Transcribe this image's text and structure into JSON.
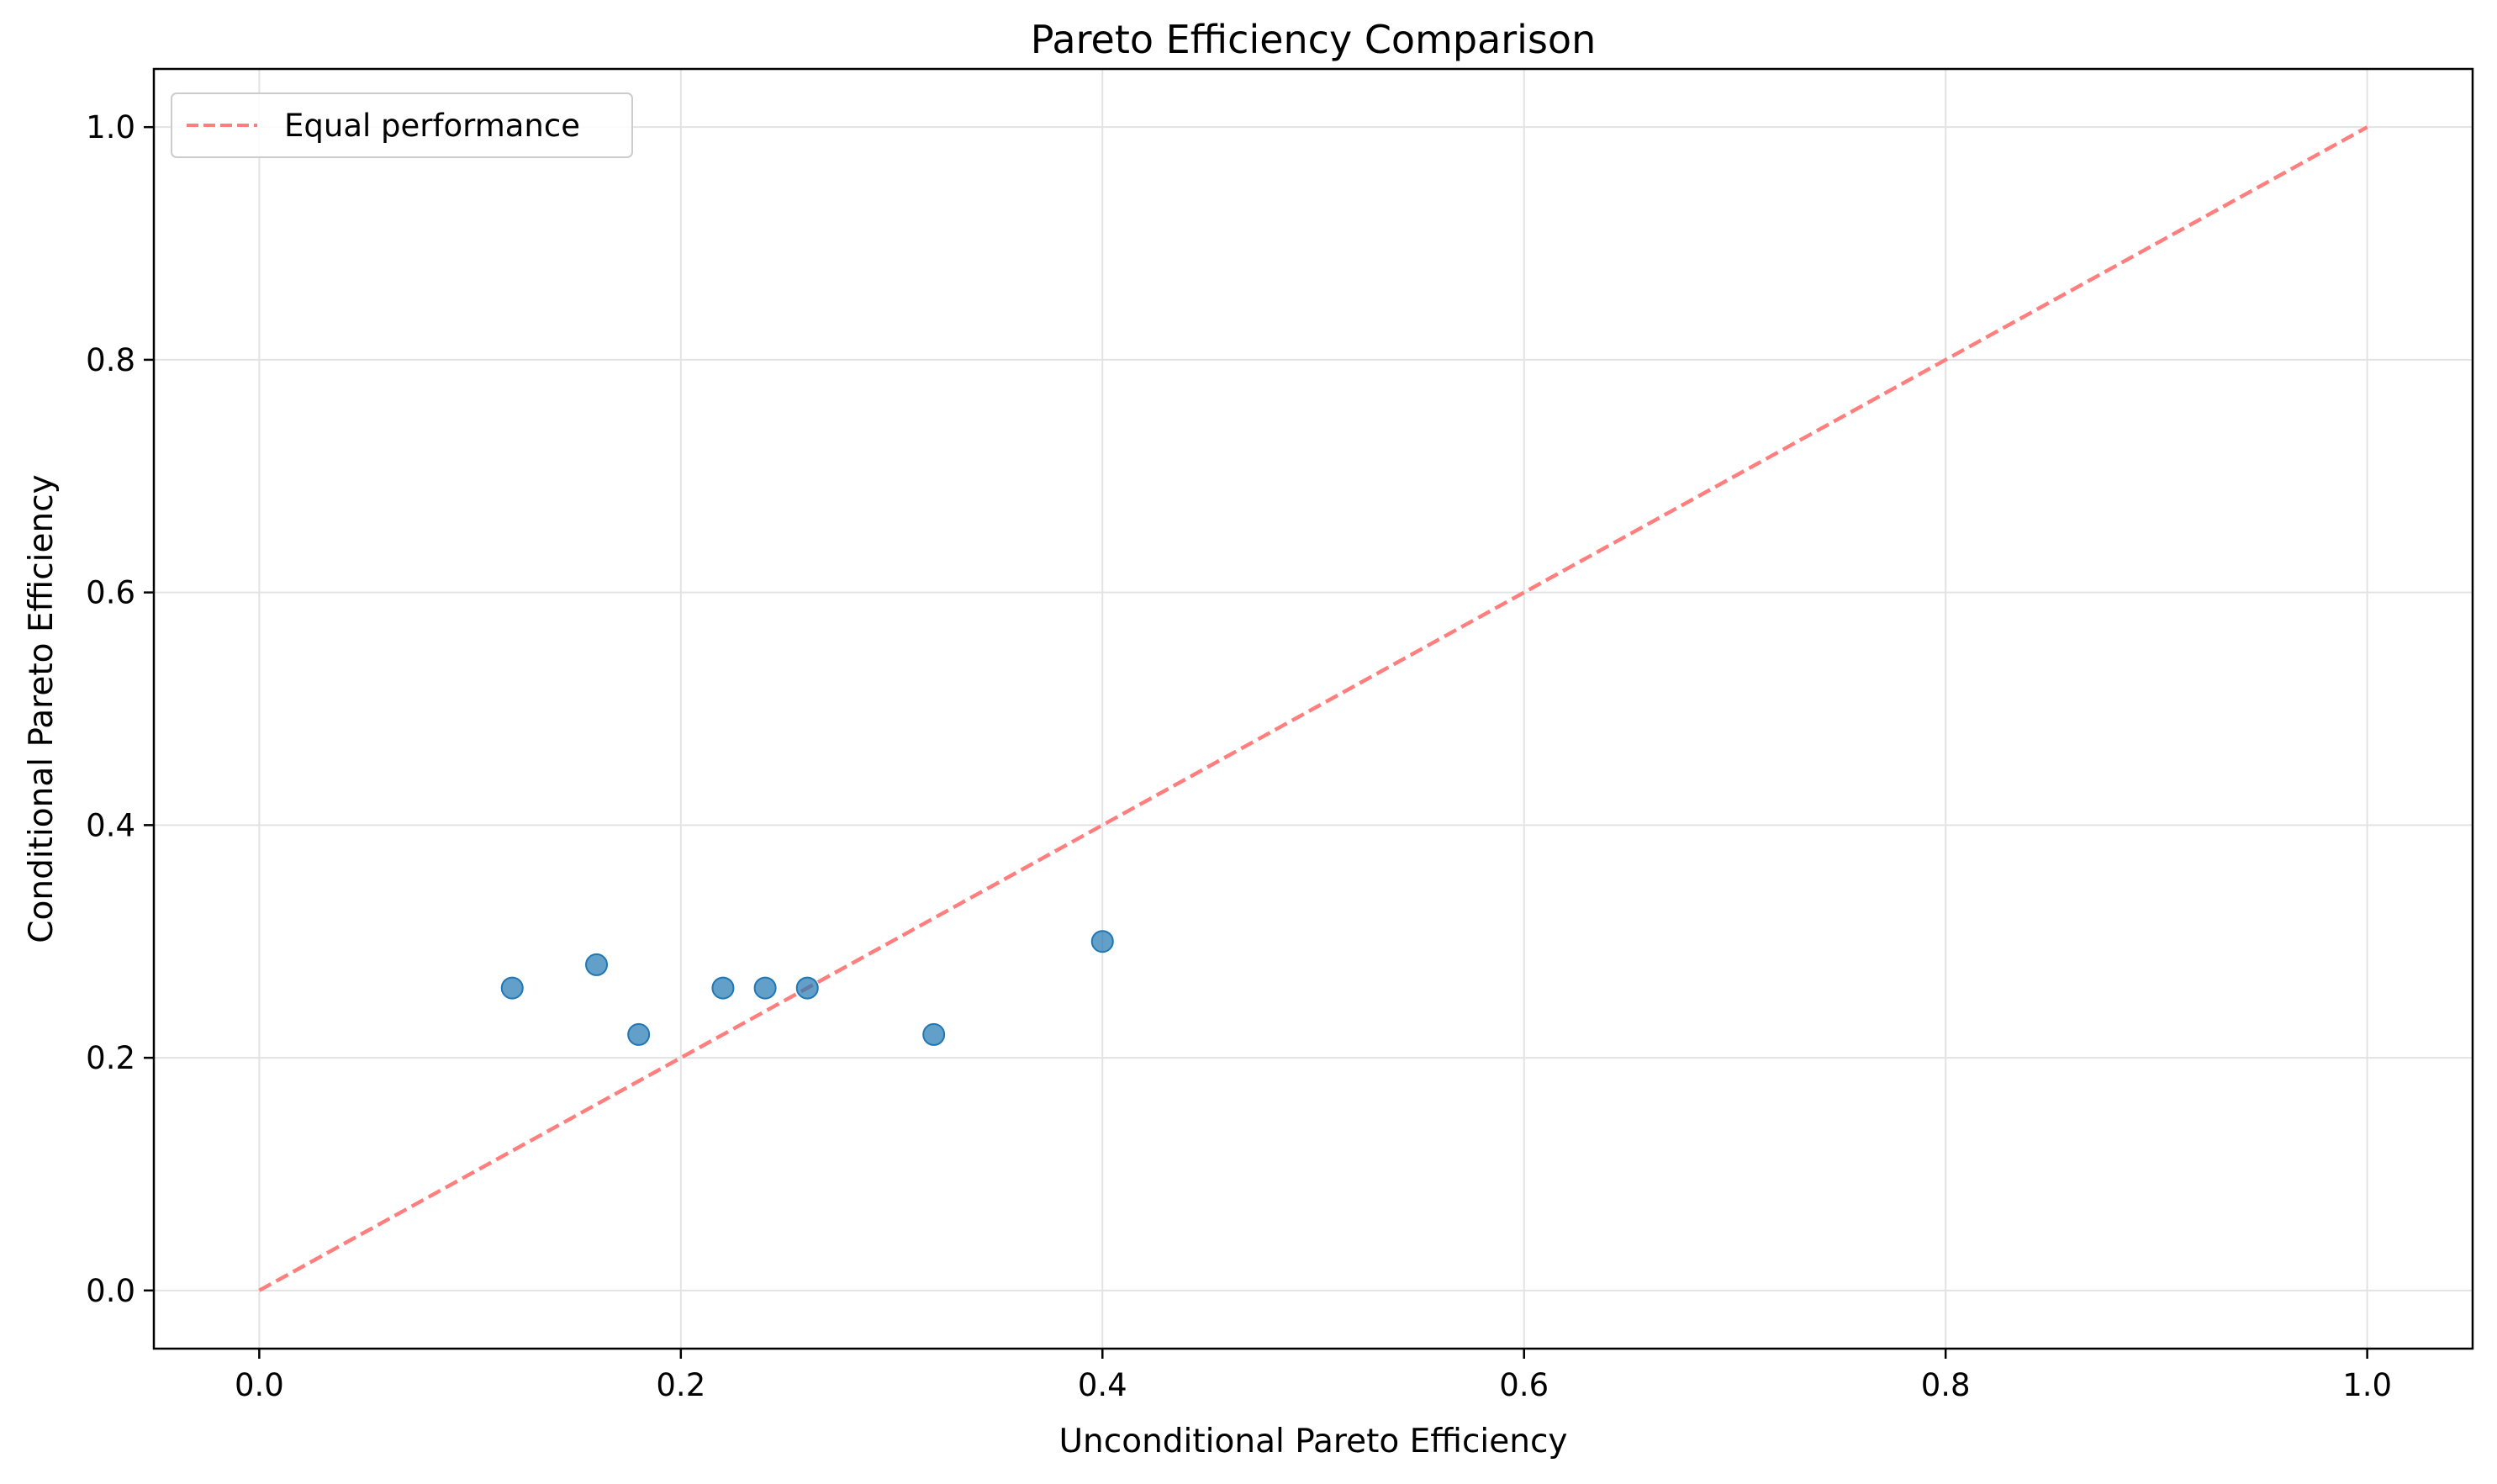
{
  "chart_data": {
    "type": "scatter",
    "title": "Pareto Efficiency Comparison",
    "xlabel": "Unconditional Pareto Efficiency",
    "ylabel": "Conditional Pareto Efficiency",
    "xlim": [
      -0.05,
      1.05
    ],
    "ylim": [
      -0.05,
      1.05
    ],
    "xticks": [
      "0.0",
      "0.2",
      "0.4",
      "0.6",
      "0.8",
      "1.0"
    ],
    "yticks": [
      "0.0",
      "0.2",
      "0.4",
      "0.6",
      "0.8",
      "1.0"
    ],
    "grid": true,
    "legend_position": "top-left",
    "series": [
      {
        "type": "scatter",
        "color": "#1f77b4",
        "points": [
          {
            "x": 0.12,
            "y": 0.26
          },
          {
            "x": 0.16,
            "y": 0.28
          },
          {
            "x": 0.18,
            "y": 0.22
          },
          {
            "x": 0.22,
            "y": 0.26
          },
          {
            "x": 0.24,
            "y": 0.26
          },
          {
            "x": 0.26,
            "y": 0.26
          },
          {
            "x": 0.32,
            "y": 0.22
          },
          {
            "x": 0.4,
            "y": 0.3
          }
        ]
      },
      {
        "type": "line",
        "name": "Equal performance",
        "style": "dashed",
        "color": "#ff7f7f",
        "points": [
          {
            "x": 0.0,
            "y": 0.0
          },
          {
            "x": 1.0,
            "y": 1.0
          }
        ]
      }
    ]
  }
}
